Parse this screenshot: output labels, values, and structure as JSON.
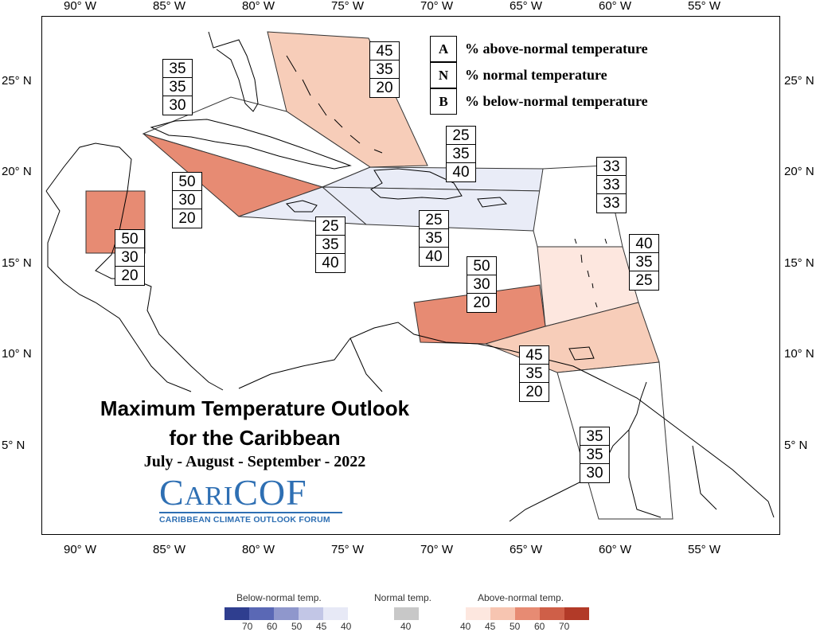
{
  "longitude_labels": [
    "90° W",
    "85° W",
    "80° W",
    "75° W",
    "70° W",
    "65° W",
    "60° W",
    "55° W"
  ],
  "latitude_labels": [
    "25° N",
    "20° N",
    "15° N",
    "10° N",
    "5° N"
  ],
  "legend": {
    "a_key": "A",
    "a_text": "% above-normal temperature",
    "n_key": "N",
    "n_text": "% normal temperature",
    "b_key": "B",
    "b_text": "% below-normal temperature"
  },
  "regions": [
    {
      "name": "bahamas",
      "above": "45",
      "normal": "35",
      "below": "20",
      "fill": "#f7cdb9"
    },
    {
      "name": "florida-cuba-north",
      "above": "35",
      "normal": "35",
      "below": "30",
      "fill": "#ffffff"
    },
    {
      "name": "cuba-caymans",
      "above": "50",
      "normal": "30",
      "below": "20",
      "fill": "#e78b73"
    },
    {
      "name": "belize",
      "above": "50",
      "normal": "30",
      "below": "20",
      "fill": "#e78b73"
    },
    {
      "name": "jamaica",
      "above": "25",
      "normal": "35",
      "below": "40",
      "fill": "#e9ecf7"
    },
    {
      "name": "hispaniola-north",
      "above": "25",
      "normal": "35",
      "below": "40",
      "fill": "#e9ecf7"
    },
    {
      "name": "hispaniola-puerto-rico",
      "above": "25",
      "normal": "35",
      "below": "40",
      "fill": "#e9ecf7"
    },
    {
      "name": "leeward-islands",
      "above": "33",
      "normal": "33",
      "below": "33",
      "fill": "#ffffff"
    },
    {
      "name": "windward-islands",
      "above": "40",
      "normal": "35",
      "below": "25",
      "fill": "#fde7df"
    },
    {
      "name": "abc-islands",
      "above": "50",
      "normal": "30",
      "below": "20",
      "fill": "#e78b73"
    },
    {
      "name": "trinidad-tobago",
      "above": "45",
      "normal": "35",
      "below": "20",
      "fill": "#f7cdb9"
    },
    {
      "name": "guianas",
      "above": "35",
      "normal": "35",
      "below": "30",
      "fill": "#ffffff"
    }
  ],
  "title_line1": "Maximum Temperature Outlook",
  "title_line2": "for the Caribbean",
  "season": "July - August - September - 2022",
  "logo": {
    "text_c": "C",
    "text_ari": "ARI",
    "text_cof": "COF",
    "subtext": "CARIBBEAN CLIMATE OUTLOOK FORUM"
  },
  "colorbar": {
    "below_title": "Below-normal temp.",
    "normal_title": "Normal temp.",
    "above_title": "Above-normal temp.",
    "below_ticks": [
      "70",
      "60",
      "50",
      "45",
      "40"
    ],
    "normal_ticks": [
      "40"
    ],
    "above_ticks": [
      "40",
      "45",
      "50",
      "60",
      "70"
    ],
    "below_colors": [
      "#2f3e8f",
      "#5a68b5",
      "#8f97cc",
      "#c2c6e6",
      "#e7e9f6"
    ],
    "normal_colors": [
      "#c8c8c8"
    ],
    "above_colors": [
      "#fde7df",
      "#f7c5b1",
      "#e78b73",
      "#cf5f48",
      "#b23a28"
    ]
  }
}
